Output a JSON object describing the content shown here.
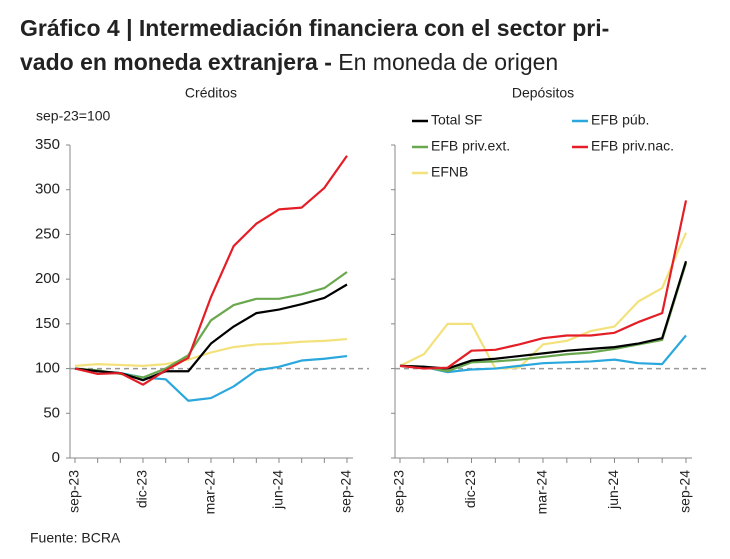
{
  "header": {
    "title_lines": [
      "Gráfico 4 | Intermediación financiera con el sector pri-",
      "vado en moneda extranjera -"
    ],
    "subtitle": "En moneda de origen"
  },
  "source": "Fuente: BCRA",
  "chart_data": [
    {
      "type": "line",
      "title": "Créditos",
      "y_label": "sep-23=100",
      "categories": [
        "sep-23",
        null,
        null,
        "dic-23",
        null,
        null,
        "mar-24",
        null,
        null,
        "jun-24",
        null,
        null,
        "sep-24"
      ],
      "ylim": [
        0,
        350
      ],
      "yticks": [
        0,
        50,
        100,
        150,
        200,
        250,
        300,
        350
      ],
      "reference_line": 100,
      "legend": false,
      "series": [
        {
          "color": "#f3e27c",
          "values": [
            103,
            105,
            104,
            103,
            105,
            110,
            118,
            124,
            127,
            128,
            130,
            131,
            133
          ]
        },
        {
          "color": "#2aa7dc",
          "values": [
            100,
            97,
            95,
            90,
            88,
            64,
            67,
            80,
            98,
            102,
            109,
            111,
            114
          ]
        },
        {
          "color": "#6aa84f",
          "values": [
            100,
            98,
            94,
            90,
            100,
            115,
            154,
            171,
            178,
            178,
            183,
            190,
            208
          ]
        },
        {
          "color": "#000000",
          "values": [
            100,
            97,
            95,
            87,
            97,
            97,
            128,
            147,
            162,
            166,
            172,
            179,
            194
          ]
        },
        {
          "color": "#e41e26",
          "values": [
            100,
            94,
            95,
            82,
            98,
            112,
            180,
            237,
            262,
            278,
            280,
            302,
            338
          ]
        }
      ]
    },
    {
      "type": "line",
      "title": "Depósitos",
      "categories": [
        "sep-23",
        null,
        null,
        "dic-23",
        null,
        null,
        "mar-24",
        null,
        null,
        "jun-24",
        null,
        null,
        "sep-24"
      ],
      "ylim": [
        0,
        350
      ],
      "yticks": [
        0,
        50,
        100,
        150,
        200,
        250,
        300,
        350
      ],
      "reference_line": 100,
      "legend": "top",
      "series": [
        {
          "name": "EFNB",
          "color": "#f3e27c",
          "values": [
            103,
            116,
            150,
            150,
            100,
            101,
            127,
            131,
            142,
            147,
            175,
            190,
            252
          ]
        },
        {
          "name": "EFB púb.",
          "color": "#2aa7dc",
          "values": [
            103,
            102,
            96,
            99,
            100,
            103,
            106,
            107,
            108,
            110,
            106,
            105,
            137
          ]
        },
        {
          "name": "EFB priv.ext.",
          "color": "#6aa84f",
          "values": [
            103,
            102,
            97,
            107,
            108,
            110,
            113,
            116,
            118,
            122,
            127,
            132,
            218
          ]
        },
        {
          "name": "Total SF",
          "color": "#000000",
          "values": [
            103,
            102,
            100,
            109,
            111,
            114,
            117,
            120,
            122,
            124,
            128,
            134,
            220
          ]
        },
        {
          "name": "EFB priv.nac.",
          "color": "#e41e26",
          "values": [
            103,
            100,
            101,
            120,
            121,
            127,
            134,
            137,
            137,
            140,
            152,
            162,
            288
          ]
        }
      ]
    }
  ]
}
